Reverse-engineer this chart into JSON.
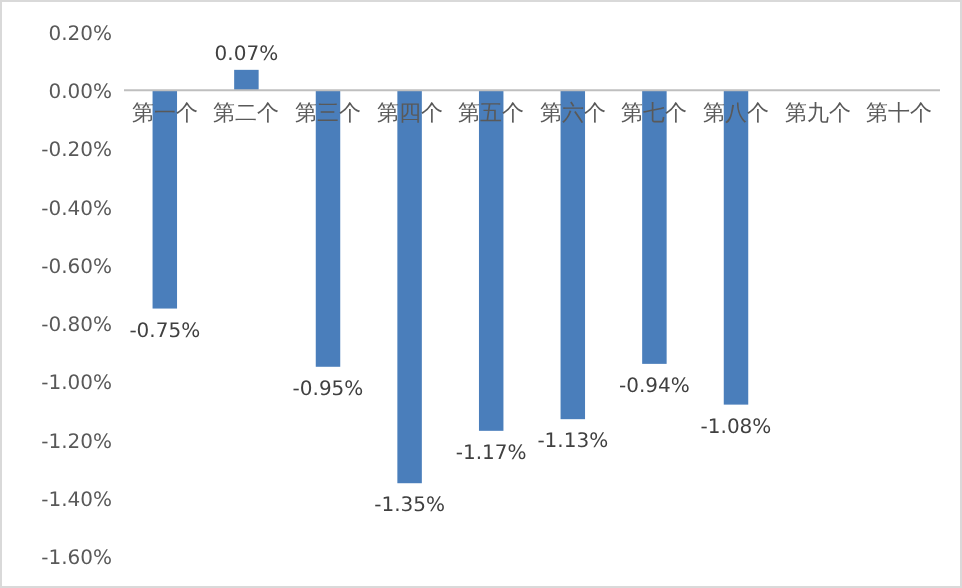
{
  "chart_data": {
    "type": "bar",
    "categories": [
      "第一个",
      "第二个",
      "第三个",
      "第四个",
      "第五个",
      "第六个",
      "第七个",
      "第八个",
      "第九个",
      "第十个"
    ],
    "values": [
      -0.75,
      0.07,
      -0.95,
      -1.35,
      -1.17,
      -1.13,
      -0.94,
      -1.08,
      null,
      null
    ],
    "value_labels": [
      "-0.75%",
      "0.07%",
      "-0.95%",
      "-1.35%",
      "-1.17%",
      "-1.13%",
      "-0.94%",
      "-1.08%",
      null,
      null
    ],
    "color": "#4a7ebb",
    "ylim": [
      -1.6,
      0.2
    ],
    "yticks": [
      {
        "value": 0.2,
        "label": "0.20%"
      },
      {
        "value": 0,
        "label": "0.00%"
      },
      {
        "value": -0.2,
        "label": "-0.20%"
      },
      {
        "value": -0.4,
        "label": "-0.40%"
      },
      {
        "value": -0.6,
        "label": "-0.60%"
      },
      {
        "value": -0.8,
        "label": "-0.80%"
      },
      {
        "value": -1.0,
        "label": "-1.00%"
      },
      {
        "value": -1.2,
        "label": "-1.20%"
      },
      {
        "value": -1.4,
        "label": "-1.40%"
      },
      {
        "value": -1.6,
        "label": "-1.60%"
      }
    ],
    "grid": false
  }
}
